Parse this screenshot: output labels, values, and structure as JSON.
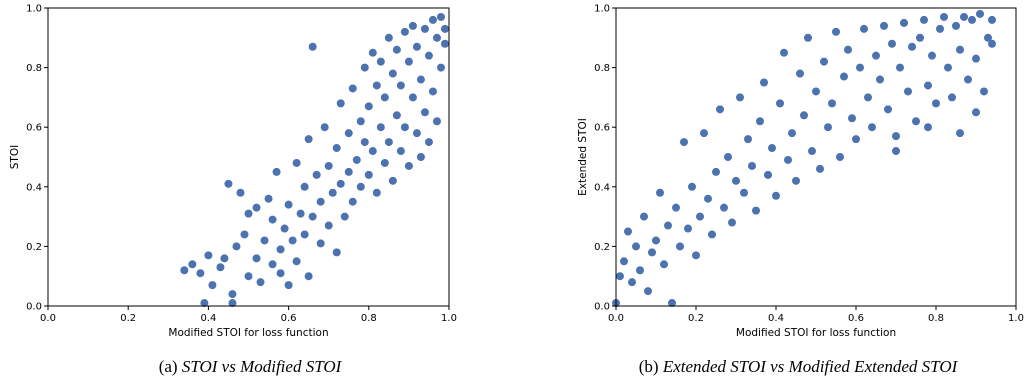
{
  "chart_data": [
    {
      "type": "scatter",
      "xlabel": "Modified STOI for loss function",
      "ylabel": "STOI",
      "xlim": [
        0.0,
        1.0
      ],
      "ylim": [
        0.0,
        1.0
      ],
      "xticks": [
        "0.0",
        "0.2",
        "0.4",
        "0.6",
        "0.8",
        "1.0"
      ],
      "yticks": [
        "0.0",
        "0.2",
        "0.4",
        "0.6",
        "0.8",
        "1.0"
      ],
      "grid": false,
      "color": "#4c72b0",
      "caption_label": "(a)",
      "caption_text": "STOI vs Modified STOI",
      "points": [
        [
          0.34,
          0.12
        ],
        [
          0.36,
          0.14
        ],
        [
          0.38,
          0.11
        ],
        [
          0.39,
          0.01
        ],
        [
          0.4,
          0.17
        ],
        [
          0.41,
          0.07
        ],
        [
          0.43,
          0.13
        ],
        [
          0.44,
          0.16
        ],
        [
          0.46,
          0.04
        ],
        [
          0.46,
          0.01
        ],
        [
          0.45,
          0.41
        ],
        [
          0.48,
          0.38
        ],
        [
          0.47,
          0.2
        ],
        [
          0.49,
          0.24
        ],
        [
          0.5,
          0.1
        ],
        [
          0.5,
          0.31
        ],
        [
          0.52,
          0.16
        ],
        [
          0.52,
          0.33
        ],
        [
          0.53,
          0.08
        ],
        [
          0.54,
          0.22
        ],
        [
          0.55,
          0.36
        ],
        [
          0.56,
          0.14
        ],
        [
          0.56,
          0.29
        ],
        [
          0.57,
          0.45
        ],
        [
          0.58,
          0.19
        ],
        [
          0.58,
          0.11
        ],
        [
          0.59,
          0.26
        ],
        [
          0.6,
          0.34
        ],
        [
          0.6,
          0.07
        ],
        [
          0.61,
          0.22
        ],
        [
          0.62,
          0.48
        ],
        [
          0.62,
          0.15
        ],
        [
          0.63,
          0.31
        ],
        [
          0.64,
          0.4
        ],
        [
          0.64,
          0.24
        ],
        [
          0.65,
          0.56
        ],
        [
          0.65,
          0.1
        ],
        [
          0.66,
          0.87
        ],
        [
          0.66,
          0.3
        ],
        [
          0.67,
          0.44
        ],
        [
          0.68,
          0.21
        ],
        [
          0.68,
          0.35
        ],
        [
          0.69,
          0.6
        ],
        [
          0.7,
          0.27
        ],
        [
          0.7,
          0.47
        ],
        [
          0.71,
          0.38
        ],
        [
          0.72,
          0.53
        ],
        [
          0.72,
          0.18
        ],
        [
          0.73,
          0.68
        ],
        [
          0.73,
          0.41
        ],
        [
          0.74,
          0.3
        ],
        [
          0.75,
          0.58
        ],
        [
          0.75,
          0.45
        ],
        [
          0.76,
          0.35
        ],
        [
          0.76,
          0.73
        ],
        [
          0.77,
          0.49
        ],
        [
          0.78,
          0.62
        ],
        [
          0.78,
          0.4
        ],
        [
          0.79,
          0.8
        ],
        [
          0.79,
          0.55
        ],
        [
          0.8,
          0.44
        ],
        [
          0.8,
          0.67
        ],
        [
          0.81,
          0.85
        ],
        [
          0.81,
          0.52
        ],
        [
          0.82,
          0.74
        ],
        [
          0.82,
          0.38
        ],
        [
          0.83,
          0.6
        ],
        [
          0.83,
          0.82
        ],
        [
          0.84,
          0.48
        ],
        [
          0.84,
          0.7
        ],
        [
          0.85,
          0.9
        ],
        [
          0.85,
          0.55
        ],
        [
          0.86,
          0.78
        ],
        [
          0.86,
          0.42
        ],
        [
          0.87,
          0.64
        ],
        [
          0.87,
          0.86
        ],
        [
          0.88,
          0.52
        ],
        [
          0.88,
          0.74
        ],
        [
          0.89,
          0.92
        ],
        [
          0.89,
          0.6
        ],
        [
          0.9,
          0.82
        ],
        [
          0.9,
          0.47
        ],
        [
          0.91,
          0.7
        ],
        [
          0.91,
          0.94
        ],
        [
          0.92,
          0.58
        ],
        [
          0.92,
          0.87
        ],
        [
          0.93,
          0.76
        ],
        [
          0.93,
          0.5
        ],
        [
          0.94,
          0.93
        ],
        [
          0.94,
          0.65
        ],
        [
          0.95,
          0.84
        ],
        [
          0.95,
          0.55
        ],
        [
          0.96,
          0.96
        ],
        [
          0.96,
          0.72
        ],
        [
          0.97,
          0.9
        ],
        [
          0.97,
          0.62
        ],
        [
          0.98,
          0.97
        ],
        [
          0.98,
          0.8
        ],
        [
          0.99,
          0.93
        ],
        [
          0.99,
          0.88
        ]
      ]
    },
    {
      "type": "scatter",
      "xlabel": "Modified STOI for loss function",
      "ylabel": "Extended STOI",
      "xlim": [
        0.0,
        1.0
      ],
      "ylim": [
        0.0,
        1.0
      ],
      "xticks": [
        "0.0",
        "0.2",
        "0.4",
        "0.6",
        "0.8",
        "1.0"
      ],
      "yticks": [
        "0.0",
        "0.2",
        "0.4",
        "0.6",
        "0.8",
        "1.0"
      ],
      "grid": false,
      "color": "#4c72b0",
      "caption_label": "(b)",
      "caption_text": "Extended STOI vs Modified Extended STOI",
      "points": [
        [
          0.0,
          0.01
        ],
        [
          0.01,
          0.1
        ],
        [
          0.02,
          0.15
        ],
        [
          0.03,
          0.25
        ],
        [
          0.04,
          0.08
        ],
        [
          0.05,
          0.2
        ],
        [
          0.06,
          0.12
        ],
        [
          0.07,
          0.3
        ],
        [
          0.08,
          0.05
        ],
        [
          0.09,
          0.18
        ],
        [
          0.1,
          0.22
        ],
        [
          0.11,
          0.38
        ],
        [
          0.12,
          0.14
        ],
        [
          0.13,
          0.27
        ],
        [
          0.14,
          0.01
        ],
        [
          0.15,
          0.33
        ],
        [
          0.16,
          0.2
        ],
        [
          0.17,
          0.55
        ],
        [
          0.18,
          0.26
        ],
        [
          0.19,
          0.4
        ],
        [
          0.2,
          0.17
        ],
        [
          0.21,
          0.3
        ],
        [
          0.22,
          0.58
        ],
        [
          0.23,
          0.36
        ],
        [
          0.24,
          0.24
        ],
        [
          0.25,
          0.45
        ],
        [
          0.26,
          0.66
        ],
        [
          0.27,
          0.33
        ],
        [
          0.28,
          0.5
        ],
        [
          0.29,
          0.28
        ],
        [
          0.3,
          0.42
        ],
        [
          0.31,
          0.7
        ],
        [
          0.32,
          0.38
        ],
        [
          0.33,
          0.56
        ],
        [
          0.34,
          0.47
        ],
        [
          0.35,
          0.32
        ],
        [
          0.36,
          0.62
        ],
        [
          0.37,
          0.75
        ],
        [
          0.38,
          0.44
        ],
        [
          0.39,
          0.53
        ],
        [
          0.4,
          0.37
        ],
        [
          0.41,
          0.68
        ],
        [
          0.42,
          0.85
        ],
        [
          0.43,
          0.49
        ],
        [
          0.44,
          0.58
        ],
        [
          0.45,
          0.42
        ],
        [
          0.46,
          0.78
        ],
        [
          0.47,
          0.64
        ],
        [
          0.48,
          0.9
        ],
        [
          0.49,
          0.52
        ],
        [
          0.5,
          0.72
        ],
        [
          0.51,
          0.46
        ],
        [
          0.52,
          0.82
        ],
        [
          0.53,
          0.6
        ],
        [
          0.54,
          0.68
        ],
        [
          0.55,
          0.92
        ],
        [
          0.56,
          0.5
        ],
        [
          0.57,
          0.77
        ],
        [
          0.58,
          0.86
        ],
        [
          0.59,
          0.63
        ],
        [
          0.6,
          0.56
        ],
        [
          0.61,
          0.8
        ],
        [
          0.62,
          0.93
        ],
        [
          0.63,
          0.7
        ],
        [
          0.64,
          0.6
        ],
        [
          0.65,
          0.84
        ],
        [
          0.66,
          0.76
        ],
        [
          0.67,
          0.94
        ],
        [
          0.68,
          0.66
        ],
        [
          0.69,
          0.88
        ],
        [
          0.7,
          0.57
        ],
        [
          0.71,
          0.8
        ],
        [
          0.72,
          0.95
        ],
        [
          0.73,
          0.72
        ],
        [
          0.74,
          0.87
        ],
        [
          0.75,
          0.62
        ],
        [
          0.76,
          0.9
        ],
        [
          0.77,
          0.96
        ],
        [
          0.78,
          0.74
        ],
        [
          0.79,
          0.84
        ],
        [
          0.8,
          0.68
        ],
        [
          0.81,
          0.93
        ],
        [
          0.82,
          0.97
        ],
        [
          0.83,
          0.8
        ],
        [
          0.84,
          0.7
        ],
        [
          0.85,
          0.94
        ],
        [
          0.86,
          0.86
        ],
        [
          0.87,
          0.97
        ],
        [
          0.88,
          0.76
        ],
        [
          0.89,
          0.96
        ],
        [
          0.9,
          0.83
        ],
        [
          0.91,
          0.98
        ],
        [
          0.92,
          0.72
        ],
        [
          0.93,
          0.9
        ],
        [
          0.94,
          0.88
        ],
        [
          0.94,
          0.96
        ],
        [
          0.9,
          0.65
        ],
        [
          0.86,
          0.58
        ],
        [
          0.78,
          0.6
        ],
        [
          0.7,
          0.52
        ]
      ]
    }
  ]
}
